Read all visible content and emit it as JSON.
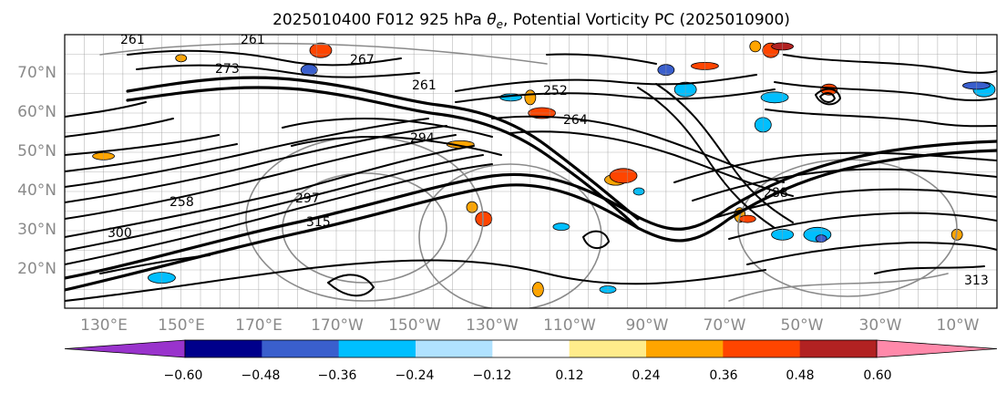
{
  "title_prefix": "2025010400 F012 925 hPa ",
  "title_theta": "θ",
  "title_sub": "e",
  "title_suffix": ", Potential Vorticity PC (2025010900)",
  "map": {
    "lat_labels": [
      "70°N",
      "60°N",
      "50°N",
      "40°N",
      "30°N",
      "20°N"
    ],
    "lon_labels": [
      "130°E",
      "150°E",
      "170°E",
      "170°W",
      "150°W",
      "130°W",
      "110°W",
      "90°W",
      "70°W",
      "50°W",
      "30°W",
      "10°W"
    ],
    "contour_labels": [
      "261",
      "261",
      "267",
      "261",
      "252",
      "264",
      "273",
      "294",
      "288",
      "297",
      "315",
      "258",
      "300",
      "313"
    ]
  },
  "colorbar": {
    "ticks": [
      "−0.60",
      "−0.48",
      "−0.36",
      "−0.24",
      "−0.12",
      "0.12",
      "0.24",
      "0.36",
      "0.48",
      "0.60"
    ],
    "colors": [
      "#9933cc",
      "#00008b",
      "#3a5fcd",
      "#00bfff",
      "#b0e2ff",
      "#ffffff",
      "#ffec8b",
      "#ffa500",
      "#ff4500",
      "#b22222",
      "#ff89aa"
    ]
  },
  "anomalies": [
    {
      "color": "#ffa500",
      "lon": 150,
      "lat": 74
    },
    {
      "color": "#3a5fcd",
      "lon": -177,
      "lat": 71
    },
    {
      "color": "#ff4500",
      "lon": -174,
      "lat": 76
    },
    {
      "color": "#ffa500",
      "lon": -138,
      "lat": 52
    },
    {
      "color": "#ffa500",
      "lon": -135,
      "lat": 36
    },
    {
      "color": "#ff4500",
      "lon": -132,
      "lat": 33
    },
    {
      "color": "#00bfff",
      "lon": -125,
      "lat": 64
    },
    {
      "color": "#ff4500",
      "lon": -117,
      "lat": 60
    },
    {
      "color": "#ffa500",
      "lon": -120,
      "lat": 64
    },
    {
      "color": "#00bfff",
      "lon": -112,
      "lat": 31
    },
    {
      "color": "#ffa500",
      "lon": -98,
      "lat": 43
    },
    {
      "color": "#ff4500",
      "lon": -96,
      "lat": 44
    },
    {
      "color": "#00bfff",
      "lon": -92,
      "lat": 40
    },
    {
      "color": "#3a5fcd",
      "lon": -85,
      "lat": 71
    },
    {
      "color": "#00bfff",
      "lon": -80,
      "lat": 66
    },
    {
      "color": "#ff4500",
      "lon": -75,
      "lat": 72
    },
    {
      "color": "#ffa500",
      "lon": -62,
      "lat": 77
    },
    {
      "color": "#ff4500",
      "lon": -58,
      "lat": 76
    },
    {
      "color": "#b22222",
      "lon": -55,
      "lat": 77
    },
    {
      "color": "#00bfff",
      "lon": -57,
      "lat": 64
    },
    {
      "color": "#ffa500",
      "lon": -66,
      "lat": 34
    },
    {
      "color": "#ff4500",
      "lon": -64,
      "lat": 33
    },
    {
      "color": "#00bfff",
      "lon": -55,
      "lat": 29
    },
    {
      "color": "#00bfff",
      "lon": -46,
      "lat": 29
    },
    {
      "color": "#3a5fcd",
      "lon": -45,
      "lat": 28
    },
    {
      "color": "#ff4500",
      "lon": -43,
      "lat": 66
    },
    {
      "color": "#00bfff",
      "lon": -3,
      "lat": 66
    },
    {
      "color": "#3a5fcd",
      "lon": -5,
      "lat": 67
    },
    {
      "color": "#ffa500",
      "lon": -10,
      "lat": 29
    },
    {
      "color": "#00bfff",
      "lon": -60,
      "lat": 57
    },
    {
      "color": "#ffa500",
      "lon": 130,
      "lat": 49
    },
    {
      "color": "#00bfff",
      "lon": 145,
      "lat": 18
    },
    {
      "color": "#ffa500",
      "lon": -118,
      "lat": 15
    },
    {
      "color": "#00bfff",
      "lon": -100,
      "lat": 15
    }
  ]
}
